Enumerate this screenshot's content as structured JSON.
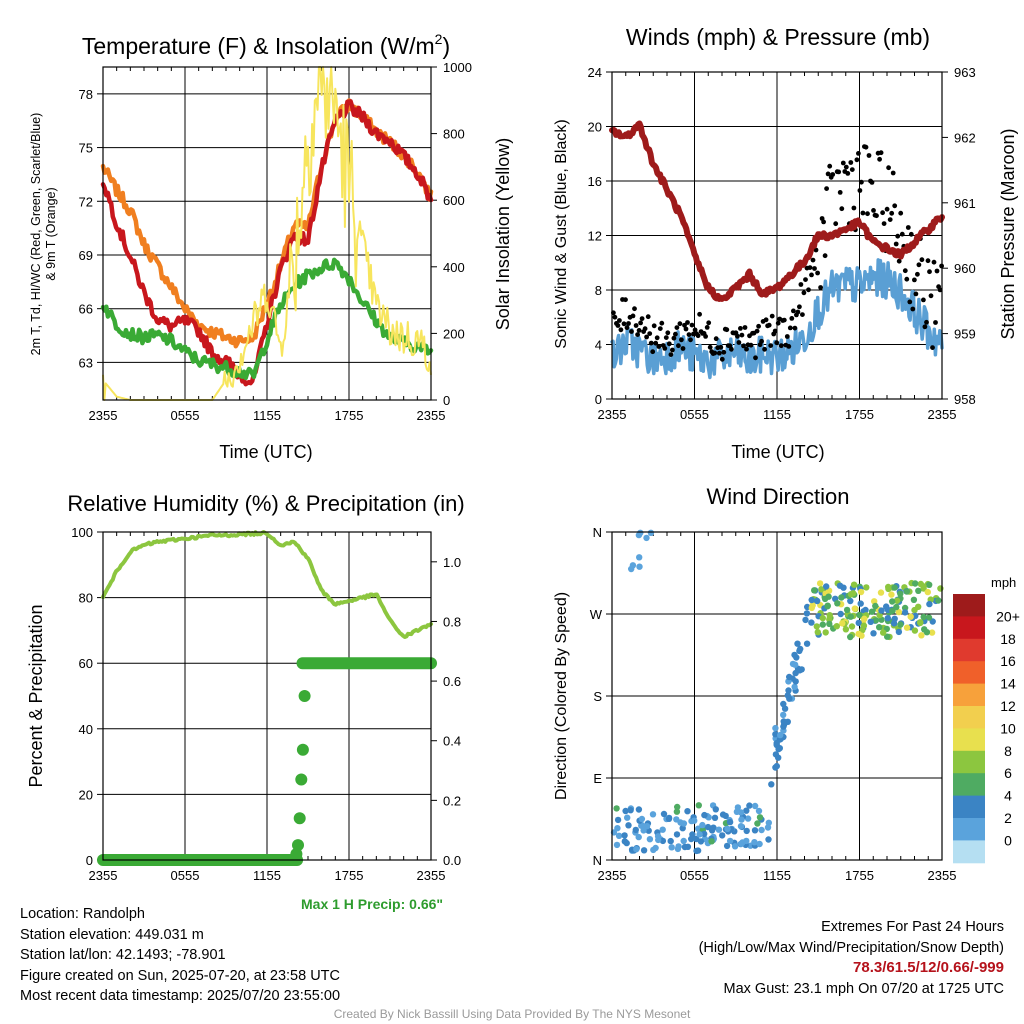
{
  "chart_data": [
    {
      "type": "line",
      "title": "Temperature (F) & Insolation (W/m²)",
      "title_prefix": "Temperature (F) & Insolation (W/m",
      "title_sup": "2",
      "title_suffix": ")",
      "xlabel": "Time (UTC)",
      "ylabel_line1": "2m T, Td, HI/WC (Red, Green, Scarlet/Blue)",
      "ylabel_line2": "& 9m T (Orange)",
      "ylabel_right": "Solar Insolation (Yellow)",
      "x_ticks": [
        "2355",
        "0555",
        "1155",
        "1755",
        "2355"
      ],
      "y_ticks": [
        63,
        66,
        69,
        72,
        75,
        78
      ],
      "y_right_ticks": [
        0,
        200,
        400,
        600,
        800,
        1000
      ],
      "ylim": [
        60.9,
        79.5
      ],
      "ylim_right": [
        0,
        1000
      ],
      "x_hours": [
        0,
        1,
        2,
        3,
        4,
        5,
        6,
        7,
        8,
        9,
        10,
        11,
        12,
        13,
        14,
        15,
        16,
        17,
        18,
        19,
        20,
        21,
        22,
        23,
        24
      ],
      "series": [
        {
          "color": "#c8171d",
          "values": [
            73.2,
            70.8,
            68.9,
            66.9,
            65.4,
            65.0,
            65.3,
            64.8,
            63.5,
            63.1,
            62.3,
            61.9,
            65.2,
            68.2,
            70.1,
            69.8,
            73.8,
            76.5,
            77.3,
            76.7,
            75.8,
            75.4,
            74.5,
            73.6,
            72.1
          ]
        },
        {
          "color": "#f07f20",
          "values": [
            73.9,
            72.6,
            71.5,
            69.6,
            68.4,
            67.2,
            66.0,
            65.1,
            64.7,
            64.4,
            64.2,
            64.4,
            66.3,
            68.4,
            70.7,
            70.5,
            74.1,
            76.6,
            77.4,
            76.7,
            75.9,
            75.3,
            74.6,
            73.7,
            72.2
          ]
        },
        {
          "color": "#3aaa35",
          "values": [
            66.3,
            65.1,
            64.6,
            64.4,
            64.5,
            64.2,
            63.6,
            63.1,
            62.9,
            62.7,
            62.5,
            62.2,
            64.3,
            66.2,
            67.3,
            67.9,
            68.3,
            68.6,
            67.7,
            66.4,
            65.3,
            64.4,
            64.1,
            63.9,
            63.6
          ]
        },
        {
          "color": "#f7e55d",
          "axis": "right",
          "values": [
            60,
            10,
            0,
            0,
            0,
            0,
            0,
            0,
            0,
            60,
            130,
            230,
            330,
            160,
            420,
            800,
            960,
            880,
            640,
            460,
            280,
            210,
            190,
            180,
            130
          ]
        }
      ]
    },
    {
      "type": "line",
      "title": "Winds (mph) & Pressure (mb)",
      "xlabel": "Time (UTC)",
      "ylabel": "Sonic Wind & Gust (Blue, Black)",
      "ylabel_right": "Station Pressure (Maroon)",
      "x_ticks": [
        "2355",
        "0555",
        "1155",
        "1755",
        "2355"
      ],
      "y_ticks": [
        0,
        4,
        8,
        12,
        16,
        20,
        24
      ],
      "y_right_ticks": [
        958,
        959,
        960,
        961,
        962,
        963
      ],
      "ylim": [
        0,
        24
      ],
      "ylim_right": [
        958,
        963
      ],
      "x_hours": [
        0,
        1,
        2,
        3,
        4,
        5,
        6,
        7,
        8,
        9,
        10,
        11,
        12,
        13,
        14,
        15,
        16,
        17,
        18,
        19,
        20,
        21,
        22,
        23,
        24
      ],
      "series": [
        {
          "color": "#5a9fd4",
          "values": [
            3.0,
            4.2,
            3.6,
            2.9,
            3.3,
            3.8,
            3.1,
            2.8,
            3.0,
            3.4,
            2.7,
            3.3,
            3.1,
            3.5,
            4.6,
            6.5,
            8.0,
            8.4,
            8.3,
            8.9,
            8.7,
            7.9,
            6.5,
            5.0,
            4.1
          ]
        },
        {
          "color": "#000000",
          "style": "points",
          "values": [
            5.1,
            6.3,
            5.8,
            4.7,
            4.0,
            4.8,
            5.3,
            4.6,
            4.2,
            4.9,
            4.1,
            4.6,
            4.9,
            5.1,
            7.9,
            10.6,
            14.2,
            16.1,
            15.8,
            15.0,
            14.3,
            12.2,
            9.5,
            7.4,
            6.5
          ]
        },
        {
          "color": "#9e1b1b",
          "axis": "right",
          "values": [
            962.1,
            962.0,
            962.2,
            961.6,
            961.2,
            960.8,
            960.2,
            959.7,
            959.5,
            959.7,
            959.9,
            959.6,
            959.7,
            959.9,
            960.1,
            960.5,
            960.5,
            960.6,
            960.7,
            960.4,
            960.3,
            960.2,
            960.4,
            960.6,
            960.8
          ]
        }
      ]
    },
    {
      "type": "line",
      "title": "Relative Humidity (%) & Precipitation (in)",
      "xlabel": "",
      "ylabel": "Percent & Precipitation",
      "x_ticks": [
        "2355",
        "0555",
        "1155",
        "1755",
        "2355"
      ],
      "y_ticks": [
        0,
        20,
        40,
        60,
        80,
        100
      ],
      "y_right_ticks": [
        "0.0",
        "0.2",
        "0.4",
        "0.6",
        "0.8",
        "1.0"
      ],
      "ylim": [
        0,
        100
      ],
      "ylim_right": [
        0,
        1.1
      ],
      "x_hours": [
        0,
        1,
        2,
        3,
        4,
        5,
        6,
        7,
        8,
        9,
        10,
        11,
        12,
        13,
        14,
        15,
        16,
        17,
        18,
        19,
        20,
        21,
        22,
        23,
        24
      ],
      "series": [
        {
          "color": "#8cc63f",
          "values": [
            80,
            88,
            94,
            96,
            97,
            97.5,
            98,
            98.5,
            99,
            99,
            99.3,
            99.5,
            99.7,
            96,
            97,
            92,
            82,
            78,
            79,
            80,
            81,
            73,
            68,
            70,
            72
          ]
        },
        {
          "color": "#3aaa35",
          "style": "points",
          "axis": "right",
          "values": [
            0,
            0,
            0,
            0,
            0,
            0,
            0,
            0,
            0,
            0,
            0,
            0,
            0,
            0.15,
            0.66,
            0.66,
            0.66,
            0.66,
            0.66,
            0.66,
            0.66,
            0.66,
            0.66,
            0.66,
            0.66
          ]
        }
      ],
      "annotation": "Max 1 H Precip: 0.66\""
    },
    {
      "type": "scatter",
      "title": "Wind Direction",
      "ylabel": "Direction (Colored By Speed)",
      "x_ticks": [
        "2355",
        "0555",
        "1155",
        "1755",
        "2355"
      ],
      "y_ticks": [
        "N",
        "E",
        "S",
        "W",
        "N"
      ],
      "ylim": [
        0,
        360
      ],
      "colorbar_title": "mph",
      "colorbar_labels": [
        "20+",
        "18",
        "16",
        "14",
        "12",
        "10",
        "8",
        "6",
        "4",
        "2",
        "0"
      ],
      "colorbar_colors": [
        "#9e1b1b",
        "#c8171d",
        "#e03a2e",
        "#f0602a",
        "#f7a13b",
        "#f2cf4e",
        "#e8e04e",
        "#8cc63f",
        "#4fab62",
        "#3b84c4",
        "#5aa3dc",
        "#b5dff2"
      ]
    }
  ],
  "info_left": [
    "Location: Randolph",
    "Station elevation: 449.031 m",
    "Station lat/lon: 42.1493; -78.901",
    "Figure created on Sun, 2025-07-20, at 23:58 UTC",
    "Most recent data timestamp: 2025/07/20 23:55:00"
  ],
  "extremes": {
    "title": "Extremes For Past 24 Hours",
    "legend": "(High/Low/Max Wind/Precipitation/Snow Depth)",
    "values": "78.3/61.5/12/0.66/-999",
    "max_gust": "Max Gust: 23.1 mph On 07/20 at 1725 UTC"
  },
  "credit": "Created By Nick Bassill Using Data Provided By The NYS Mesonet"
}
